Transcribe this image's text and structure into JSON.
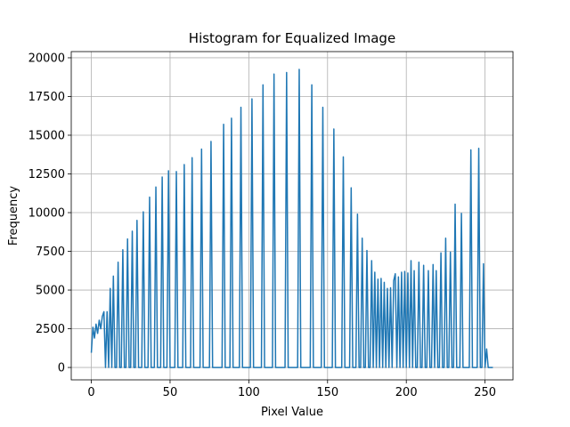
{
  "chart_data": {
    "type": "line",
    "title": "Histogram for Equalized Image",
    "xlabel": "Pixel Value",
    "ylabel": "Frequency",
    "xlim": [
      -12.75,
      267.75
    ],
    "ylim": [
      -800,
      20400
    ],
    "xticks": [
      0,
      50,
      100,
      150,
      200,
      250
    ],
    "xtick_labels": [
      "0",
      "50",
      "100",
      "150",
      "200",
      "250"
    ],
    "yticks": [
      0,
      2500,
      5000,
      7500,
      10000,
      12500,
      15000,
      17500,
      20000
    ],
    "ytick_labels": [
      "0",
      "2500",
      "5000",
      "7500",
      "10000",
      "12500",
      "15000",
      "17500",
      "20000"
    ],
    "grid": true,
    "color": "#1f77b4",
    "series": [
      {
        "peaks": [
          [
            0,
            950
          ],
          [
            1,
            2600
          ],
          [
            2,
            1900
          ],
          [
            3,
            2800
          ],
          [
            4,
            2200
          ],
          [
            5,
            3050
          ],
          [
            6,
            2500
          ],
          [
            7,
            3300
          ],
          [
            8,
            3600
          ],
          [
            10,
            3600
          ],
          [
            12,
            5100
          ],
          [
            14,
            5900
          ],
          [
            17,
            6800
          ],
          [
            20,
            7600
          ],
          [
            23,
            8300
          ],
          [
            26,
            8800
          ],
          [
            29,
            9500
          ],
          [
            33,
            10050
          ],
          [
            37,
            11000
          ],
          [
            41,
            11650
          ],
          [
            45,
            12300
          ],
          [
            49,
            12700
          ],
          [
            54,
            12650
          ],
          [
            59,
            13100
          ],
          [
            64,
            13550
          ],
          [
            70,
            14100
          ],
          [
            76,
            14600
          ],
          [
            84,
            15700
          ],
          [
            89,
            16100
          ],
          [
            95,
            16800
          ],
          [
            102,
            17350
          ],
          [
            109,
            18250
          ],
          [
            116,
            18950
          ],
          [
            124,
            19050
          ],
          [
            132,
            19250
          ],
          [
            140,
            18250
          ],
          [
            147,
            16800
          ],
          [
            154,
            15400
          ],
          [
            160,
            13600
          ],
          [
            165,
            11600
          ],
          [
            169,
            9900
          ],
          [
            172,
            8350
          ],
          [
            175,
            7550
          ],
          [
            178,
            6900
          ],
          [
            180,
            6150
          ],
          [
            182,
            5700
          ],
          [
            184,
            5750
          ],
          [
            186,
            5500
          ],
          [
            188,
            5100
          ],
          [
            190,
            5150
          ],
          [
            192,
            5600
          ],
          [
            193,
            6050
          ],
          [
            195,
            5850
          ],
          [
            197,
            6150
          ],
          [
            199,
            6200
          ],
          [
            201,
            6100
          ],
          [
            203,
            6900
          ],
          [
            205,
            6250
          ],
          [
            208,
            6800
          ],
          [
            211,
            6600
          ],
          [
            214,
            6250
          ],
          [
            217,
            6650
          ],
          [
            219,
            6250
          ],
          [
            222,
            7400
          ],
          [
            225,
            8350
          ],
          [
            228,
            7450
          ],
          [
            231,
            10550
          ],
          [
            235,
            9950
          ],
          [
            241,
            14050
          ],
          [
            246,
            14150
          ],
          [
            249,
            6700
          ],
          [
            251,
            1200
          ]
        ]
      }
    ]
  }
}
